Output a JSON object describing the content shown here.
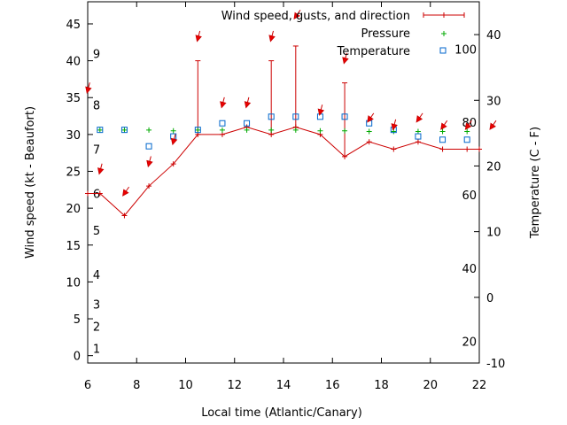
{
  "chart_data": {
    "type": "line",
    "xlabel": "Local time (Atlantic/Canary)",
    "ylabel_left": "Wind speed (kt - Beaufort)",
    "ylabel_right": "Temperature (C - F)",
    "xlim": [
      6,
      22
    ],
    "ylim_left": [
      -1,
      48
    ],
    "ylim_right": [
      -10,
      45
    ],
    "x_ticks": [
      6,
      8,
      10,
      12,
      14,
      16,
      18,
      20,
      22
    ],
    "y_left_ticks": [
      0,
      5,
      10,
      15,
      20,
      25,
      30,
      35,
      40,
      45
    ],
    "y_right_ticks": [
      -10,
      0,
      10,
      20,
      30,
      40
    ],
    "beaufort_labels": [
      {
        "label": "1",
        "kt": 1
      },
      {
        "label": "2",
        "kt": 4
      },
      {
        "label": "3",
        "kt": 7
      },
      {
        "label": "4",
        "kt": 11
      },
      {
        "label": "5",
        "kt": 17
      },
      {
        "label": "6",
        "kt": 22
      },
      {
        "label": "7",
        "kt": 28
      },
      {
        "label": "8",
        "kt": 34
      },
      {
        "label": "9",
        "kt": 41
      }
    ],
    "fahrenheit_labels": [
      {
        "label": "20",
        "c": -6.7
      },
      {
        "label": "40",
        "c": 4.4
      },
      {
        "label": "60",
        "c": 15.6
      },
      {
        "label": "80",
        "c": 26.7
      },
      {
        "label": "100",
        "c": 37.8
      }
    ],
    "legend": {
      "placement": "top-right",
      "entries": [
        "Wind speed, gusts, and direction",
        "Pressure",
        "Temperature"
      ]
    },
    "colors": {
      "wind": "#cc0000",
      "arrow": "#ee0000",
      "pressure": "#00aa00",
      "temperature": "#0066cc"
    },
    "series": [
      {
        "name": "Wind speed, gusts, and direction",
        "x": [
          6,
          6.5,
          7.5,
          8.5,
          9.5,
          10.5,
          11.5,
          12.5,
          13.5,
          14.5,
          15.5,
          16.5,
          17.5,
          18.5,
          19.5,
          20.5,
          21.5,
          22
        ],
        "values": [
          22,
          22,
          19,
          23,
          26,
          30,
          30,
          31,
          30,
          31,
          30,
          27,
          29,
          28,
          29,
          28,
          28,
          28
        ],
        "gusts": [
          null,
          null,
          null,
          null,
          null,
          40,
          null,
          null,
          40,
          42,
          null,
          37,
          null,
          null,
          null,
          null,
          null,
          null
        ]
      },
      {
        "name": "Pressure",
        "x": [
          6.5,
          7.5,
          8.5,
          9.5,
          10.5,
          11.5,
          12.5,
          13.5,
          14.5,
          15.5,
          16.5,
          17.5,
          18.5,
          19.5,
          20.5,
          21.5
        ],
        "values": [
          30.6,
          30.6,
          30.6,
          30.5,
          30.6,
          30.6,
          30.6,
          30.6,
          30.6,
          30.5,
          30.5,
          30.4,
          30.4,
          30.4,
          30.4,
          30.4
        ]
      },
      {
        "name": "Temperature",
        "x": [
          6.5,
          7.5,
          8.5,
          9.5,
          10.5,
          11.5,
          12.5,
          13.5,
          14.5,
          15.5,
          16.5,
          17.5,
          18.5,
          19.5,
          20.5,
          21.5
        ],
        "values": [
          25.5,
          25.5,
          23,
          24.5,
          25.5,
          26.5,
          26.5,
          27.5,
          27.5,
          27.5,
          27.5,
          26.5,
          25.5,
          24.5,
          24,
          24
        ]
      }
    ],
    "wind_direction_arrows": [
      {
        "x": 6,
        "y": 36,
        "dir": "N"
      },
      {
        "x": 6.5,
        "y": 25,
        "dir": "N"
      },
      {
        "x": 7.5,
        "y": 22,
        "dir": "NE"
      },
      {
        "x": 8.5,
        "y": 26,
        "dir": "N"
      },
      {
        "x": 9.5,
        "y": 29,
        "dir": "N"
      },
      {
        "x": 10.5,
        "y": 43,
        "dir": "N"
      },
      {
        "x": 11.5,
        "y": 34,
        "dir": "N"
      },
      {
        "x": 12.5,
        "y": 34,
        "dir": "N"
      },
      {
        "x": 13.5,
        "y": 43,
        "dir": "N"
      },
      {
        "x": 14.5,
        "y": 46,
        "dir": "NE"
      },
      {
        "x": 15.5,
        "y": 33,
        "dir": "N"
      },
      {
        "x": 16.5,
        "y": 40,
        "dir": "N"
      },
      {
        "x": 17.5,
        "y": 32,
        "dir": "NE"
      },
      {
        "x": 18.5,
        "y": 31,
        "dir": "N"
      },
      {
        "x": 19.5,
        "y": 32,
        "dir": "NE"
      },
      {
        "x": 20.5,
        "y": 31,
        "dir": "NE"
      },
      {
        "x": 21.5,
        "y": 31,
        "dir": "NE"
      },
      {
        "x": 22.5,
        "y": 31,
        "dir": "NE"
      }
    ],
    "grid": false
  }
}
